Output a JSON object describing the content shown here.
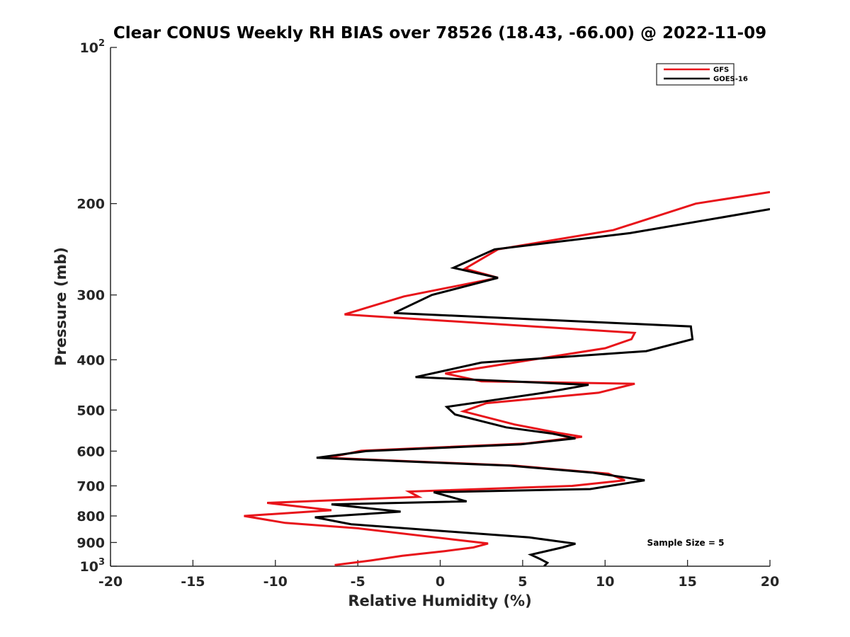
{
  "chart_data": {
    "type": "line",
    "title": "Clear CONUS Weekly RH BIAS over 78526 (18.43, -66.00) @ 2022-11-09",
    "xlabel": "Relative Humidity (%)",
    "ylabel": "Pressure (mb)",
    "xlim": [
      -20,
      20
    ],
    "ylim": [
      100,
      1000
    ],
    "y_scale": "log",
    "y_reversed": true,
    "x_ticks": [
      "-20",
      "-15",
      "-10",
      "-5",
      "0",
      "5",
      "10",
      "15",
      "20"
    ],
    "y_ticks": [
      {
        "value": 100,
        "base": "10",
        "exp": "2"
      },
      {
        "value": 200,
        "base": "200",
        "exp": ""
      },
      {
        "value": 300,
        "base": "300",
        "exp": ""
      },
      {
        "value": 400,
        "base": "400",
        "exp": ""
      },
      {
        "value": 500,
        "base": "500",
        "exp": ""
      },
      {
        "value": 600,
        "base": "600",
        "exp": ""
      },
      {
        "value": 700,
        "base": "700",
        "exp": ""
      },
      {
        "value": 800,
        "base": "800",
        "exp": ""
      },
      {
        "value": 900,
        "base": "900",
        "exp": ""
      },
      {
        "value": 1000,
        "base": "10",
        "exp": "3"
      }
    ],
    "grid": false,
    "legend_position": "top-right",
    "annotation": "Sample Size = 5",
    "series": [
      {
        "name": "GFS",
        "color": "#e8141a",
        "x": [
          20.0,
          15.5,
          10.5,
          3.5,
          1.5,
          3.5,
          -2.2,
          -5.8,
          11.8,
          11.6,
          10.0,
          0.3,
          2.5,
          11.8,
          9.6,
          2.8,
          1.4,
          4.5,
          7.1,
          8.6,
          5.2,
          -4.8,
          -6.8,
          4.5,
          10.2,
          11.2,
          8.0,
          -1.9,
          -1.3,
          -10.5,
          -6.6,
          -11.9,
          -9.4,
          -5.0,
          0.8,
          2.9,
          2.0,
          0.3,
          -2.3,
          -4.2,
          -6.4
        ],
        "y": [
          190,
          200,
          225,
          245,
          267,
          278,
          302,
          327,
          355,
          365,
          380,
          425,
          440,
          445,
          463,
          485,
          503,
          533,
          553,
          563,
          580,
          599,
          618,
          640,
          663,
          683,
          700,
          718,
          735,
          755,
          780,
          800,
          825,
          845,
          888,
          904,
          920,
          935,
          955,
          975,
          995
        ]
      },
      {
        "name": "GOES-16",
        "color": "#000000",
        "x": [
          20.0,
          11.5,
          3.3,
          0.8,
          3.5,
          -0.5,
          -2.8,
          15.2,
          15.3,
          12.5,
          2.5,
          -1.5,
          9.0,
          6.3,
          0.4,
          0.9,
          4.0,
          6.8,
          8.2,
          4.9,
          -4.5,
          -7.5,
          4.2,
          9.2,
          12.4,
          9.1,
          -0.4,
          1.6,
          -6.6,
          -2.4,
          -7.6,
          -5.4,
          5.4,
          8.2,
          7.4,
          5.5,
          6.1,
          6.5,
          6.3
        ],
        "y": [
          205,
          228,
          245,
          266,
          278,
          300,
          325,
          345,
          365,
          385,
          405,
          432,
          447,
          463,
          493,
          510,
          540,
          555,
          567,
          582,
          600,
          618,
          640,
          660,
          683,
          710,
          720,
          750,
          760,
          785,
          805,
          830,
          880,
          905,
          920,
          950,
          970,
          985,
          1000
        ]
      }
    ]
  }
}
